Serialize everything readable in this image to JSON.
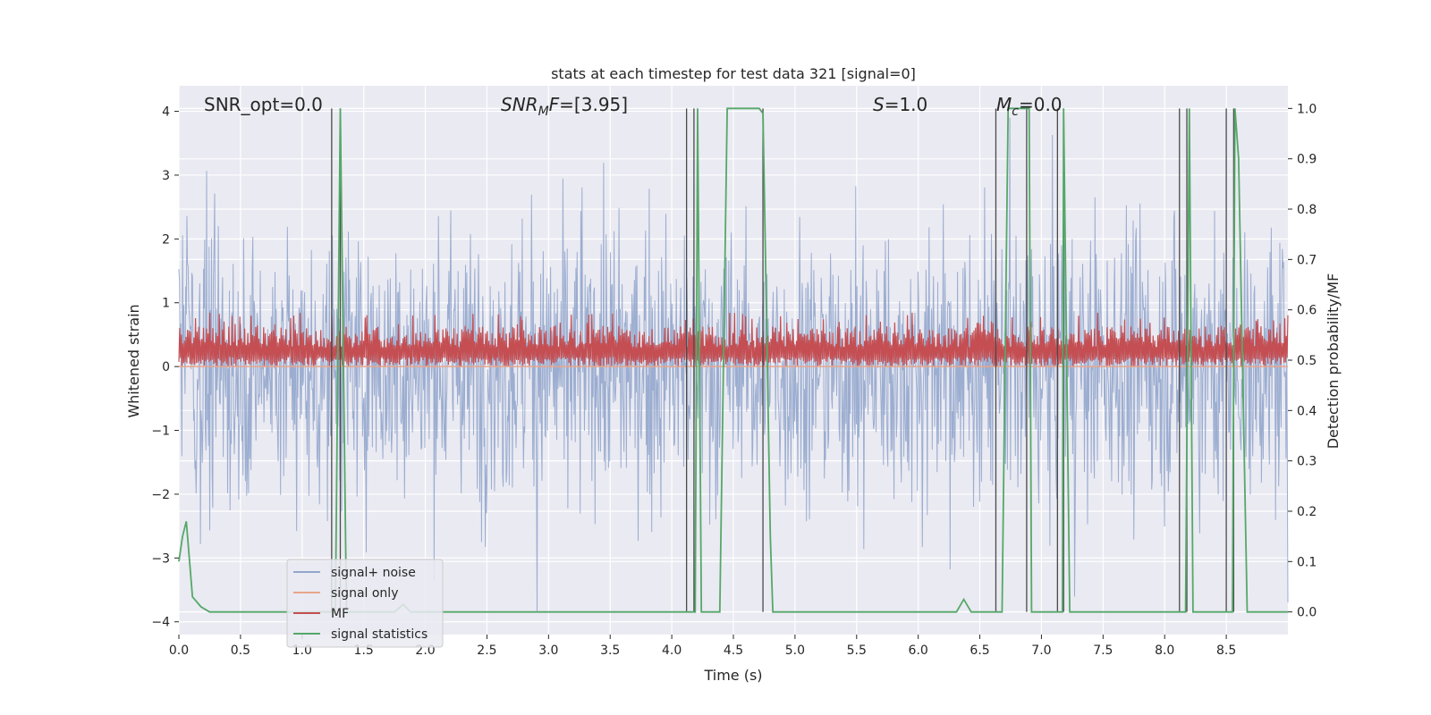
{
  "chart_data": {
    "type": "line",
    "title": "stats at each timestep for test data 321 [signal=0]",
    "xlabel": "Time (s)",
    "ylabel": "Whitened strain",
    "y2label": "Detection probability/MF",
    "xlim": [
      0.0,
      9.0
    ],
    "ylim": [
      -4.2,
      4.4
    ],
    "y2lim": [
      -0.045,
      1.045
    ],
    "x_ticks": [
      "0.0",
      "0.5",
      "1.0",
      "1.5",
      "2.0",
      "2.5",
      "3.0",
      "3.5",
      "4.0",
      "4.5",
      "5.0",
      "5.5",
      "6.0",
      "6.5",
      "7.0",
      "7.5",
      "8.0",
      "8.5"
    ],
    "y_ticks": [
      "−4",
      "−3",
      "−2",
      "−1",
      "0",
      "1",
      "2",
      "3",
      "4"
    ],
    "y2_ticks": [
      "0.0",
      "0.1",
      "0.2",
      "0.3",
      "0.4",
      "0.5",
      "0.6",
      "0.7",
      "0.8",
      "0.9",
      "1.0"
    ],
    "grid": true,
    "legend_placement": "lower-left",
    "annotations": {
      "snr_opt": "SNR_opt=0.0",
      "snr_mf": "=[3.95]",
      "snr_mf_symbol": "SNR",
      "snr_mf_sub": "M",
      "snr_mf_tail": "F",
      "s_symbol": "S",
      "s_value": "=1.0",
      "mc_symbol": "M",
      "mc_sub": "c",
      "mc_value": "=0.0"
    },
    "series": [
      {
        "name": "signal+ noise",
        "color": "#92a6cc",
        "axis": "left",
        "noise_amplitude": 2.0
      },
      {
        "name": "signal only",
        "color": "#e8a58a",
        "axis": "left",
        "values_constant": 0.0
      },
      {
        "name": "MF",
        "color": "#c44e52",
        "axis": "left",
        "baseline": 0.0,
        "peak_range": [
          0.3,
          0.85
        ]
      },
      {
        "name": "signal statistics",
        "color": "#55a868",
        "axis": "right",
        "x": [
          0.0,
          0.03,
          0.06,
          0.11,
          0.18,
          0.25,
          1.2,
          1.27,
          1.31,
          1.36,
          1.45,
          1.75,
          1.82,
          1.88,
          4.15,
          4.19,
          4.21,
          4.24,
          4.33,
          4.39,
          4.45,
          4.71,
          4.74,
          4.8,
          4.82,
          6.31,
          6.37,
          6.43,
          6.63,
          6.68,
          6.73,
          6.9,
          6.92,
          7.12,
          7.17,
          7.18,
          7.23,
          8.12,
          8.17,
          8.2,
          8.23,
          8.5,
          8.55,
          8.57,
          8.6,
          8.67,
          9.0
        ],
        "values": [
          0.1,
          0.15,
          0.18,
          0.03,
          0.01,
          0.0,
          0.0,
          0.0,
          1.0,
          0.0,
          0.0,
          0.0,
          0.015,
          0.0,
          0.0,
          0.0,
          1.0,
          0.0,
          0.0,
          0.0,
          1.0,
          1.0,
          0.99,
          0.15,
          0.0,
          0.0,
          0.025,
          0.0,
          0.0,
          0.0,
          1.0,
          1.0,
          0.0,
          0.0,
          0.0,
          1.0,
          0.0,
          0.0,
          0.0,
          1.0,
          0.0,
          0.0,
          0.0,
          1.0,
          0.9,
          0.0,
          0.0
        ]
      }
    ],
    "event_lines_x": [
      1.24,
      1.31,
      4.12,
      4.18,
      4.74,
      6.63,
      6.88,
      7.13,
      7.18,
      8.12,
      8.18,
      8.5,
      8.56
    ]
  }
}
